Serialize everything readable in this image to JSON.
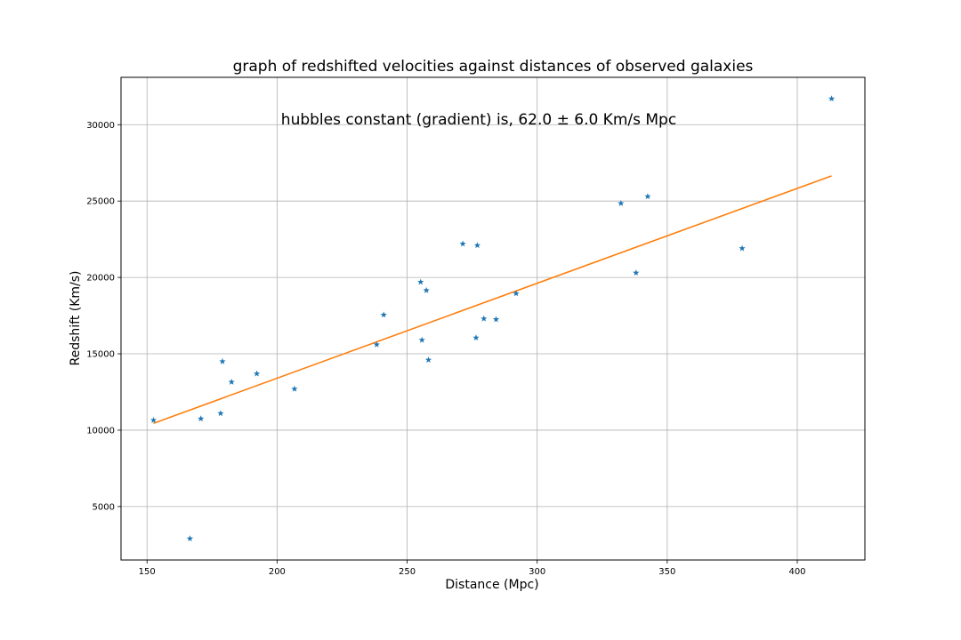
{
  "chart_data": {
    "type": "scatter",
    "title": "graph of redshifted velocities against distances of observed galaxies",
    "annotation": "hubbles constant (gradient) is, 62.0 ± 6.0 Km/s Mpc",
    "xlabel": "Distance (Mpc)",
    "ylabel": "Redshift (Km/s)",
    "xlim": [
      140,
      426
    ],
    "ylim": [
      1500,
      33100
    ],
    "xticks": [
      150,
      200,
      250,
      300,
      350,
      400
    ],
    "yticks": [
      5000,
      10000,
      15000,
      20000,
      25000,
      30000
    ],
    "grid": true,
    "series": [
      {
        "kind": "scatter",
        "marker": "star",
        "color": "#1f77b4",
        "points": [
          [
            152.5,
            10650
          ],
          [
            166.5,
            2900
          ],
          [
            170.7,
            10750
          ],
          [
            178.3,
            11100
          ],
          [
            179.0,
            14500
          ],
          [
            182.5,
            13150
          ],
          [
            192.2,
            13700
          ],
          [
            206.7,
            12700
          ],
          [
            238.3,
            15600
          ],
          [
            241.0,
            17550
          ],
          [
            255.2,
            19700
          ],
          [
            255.7,
            15900
          ],
          [
            257.4,
            19150
          ],
          [
            258.2,
            14600
          ],
          [
            271.4,
            22200
          ],
          [
            276.5,
            16050
          ],
          [
            277.0,
            22100
          ],
          [
            279.5,
            17300
          ],
          [
            284.2,
            17250
          ],
          [
            291.9,
            18950
          ],
          [
            332.2,
            24850
          ],
          [
            338.0,
            20300
          ],
          [
            342.5,
            25300
          ],
          [
            378.8,
            21900
          ],
          [
            413.2,
            31700
          ]
        ]
      },
      {
        "kind": "line",
        "color": "#ff7f0e",
        "points": [
          [
            152.5,
            10450
          ],
          [
            413.2,
            26650
          ]
        ]
      }
    ]
  }
}
